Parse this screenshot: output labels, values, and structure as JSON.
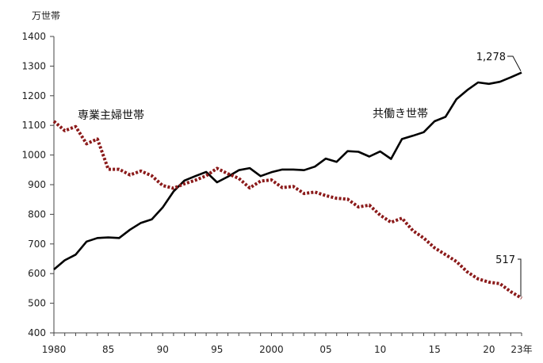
{
  "chart_data": {
    "type": "line",
    "ylabel": "万世帯",
    "ylim": [
      400,
      1400
    ],
    "yticks": [
      400,
      500,
      600,
      700,
      800,
      900,
      1000,
      1100,
      1200,
      1300,
      1400
    ],
    "xlim": [
      1980,
      2023
    ],
    "xticks": [
      {
        "x": 1980,
        "label": "1980"
      },
      {
        "x": 1985,
        "label": "85"
      },
      {
        "x": 1990,
        "label": "90"
      },
      {
        "x": 1995,
        "label": "95"
      },
      {
        "x": 2000,
        "label": "2000"
      },
      {
        "x": 2005,
        "label": "05"
      },
      {
        "x": 2010,
        "label": "10"
      },
      {
        "x": 2015,
        "label": "15"
      },
      {
        "x": 2020,
        "label": "20"
      },
      {
        "x": 2023,
        "label": "23年"
      }
    ],
    "grid": false,
    "x": [
      1980,
      1981,
      1982,
      1983,
      1984,
      1985,
      1986,
      1987,
      1988,
      1989,
      1990,
      1991,
      1992,
      1993,
      1994,
      1995,
      1996,
      1997,
      1998,
      1999,
      2000,
      2001,
      2002,
      2003,
      2004,
      2005,
      2006,
      2007,
      2008,
      2009,
      2010,
      2011,
      2012,
      2013,
      2014,
      2015,
      2016,
      2017,
      2018,
      2019,
      2020,
      2021,
      2022,
      2023
    ],
    "series": [
      {
        "name": "共働き世帯",
        "color": "#000000",
        "style": "solid",
        "values": [
          614,
          645,
          664,
          708,
          720,
          722,
          720,
          748,
          771,
          783,
          823,
          877,
          914,
          929,
          943,
          908,
          927,
          949,
          956,
          929,
          942,
          951,
          951,
          949,
          961,
          988,
          977,
          1013,
          1011,
          995,
          1012,
          987,
          1054,
          1065,
          1077,
          1114,
          1129,
          1188,
          1219,
          1245,
          1240,
          1247,
          1262,
          1278
        ]
      },
      {
        "name": "専業主婦世帯",
        "color": "#8b1a1a",
        "style": "dotted",
        "values": [
          1114,
          1082,
          1096,
          1038,
          1054,
          952,
          952,
          933,
          946,
          930,
          897,
          888,
          903,
          915,
          930,
          955,
          937,
          921,
          889,
          912,
          916,
          890,
          894,
          870,
          875,
          863,
          854,
          851,
          825,
          831,
          797,
          773,
          787,
          745,
          720,
          687,
          664,
          641,
          606,
          582,
          571,
          566,
          539,
          517
        ]
      }
    ],
    "annotations": [
      {
        "text": "1,278",
        "series": "共働き世帯",
        "at": 2023
      },
      {
        "text": "517",
        "series": "専業主婦世帯",
        "at": 2023
      }
    ]
  }
}
